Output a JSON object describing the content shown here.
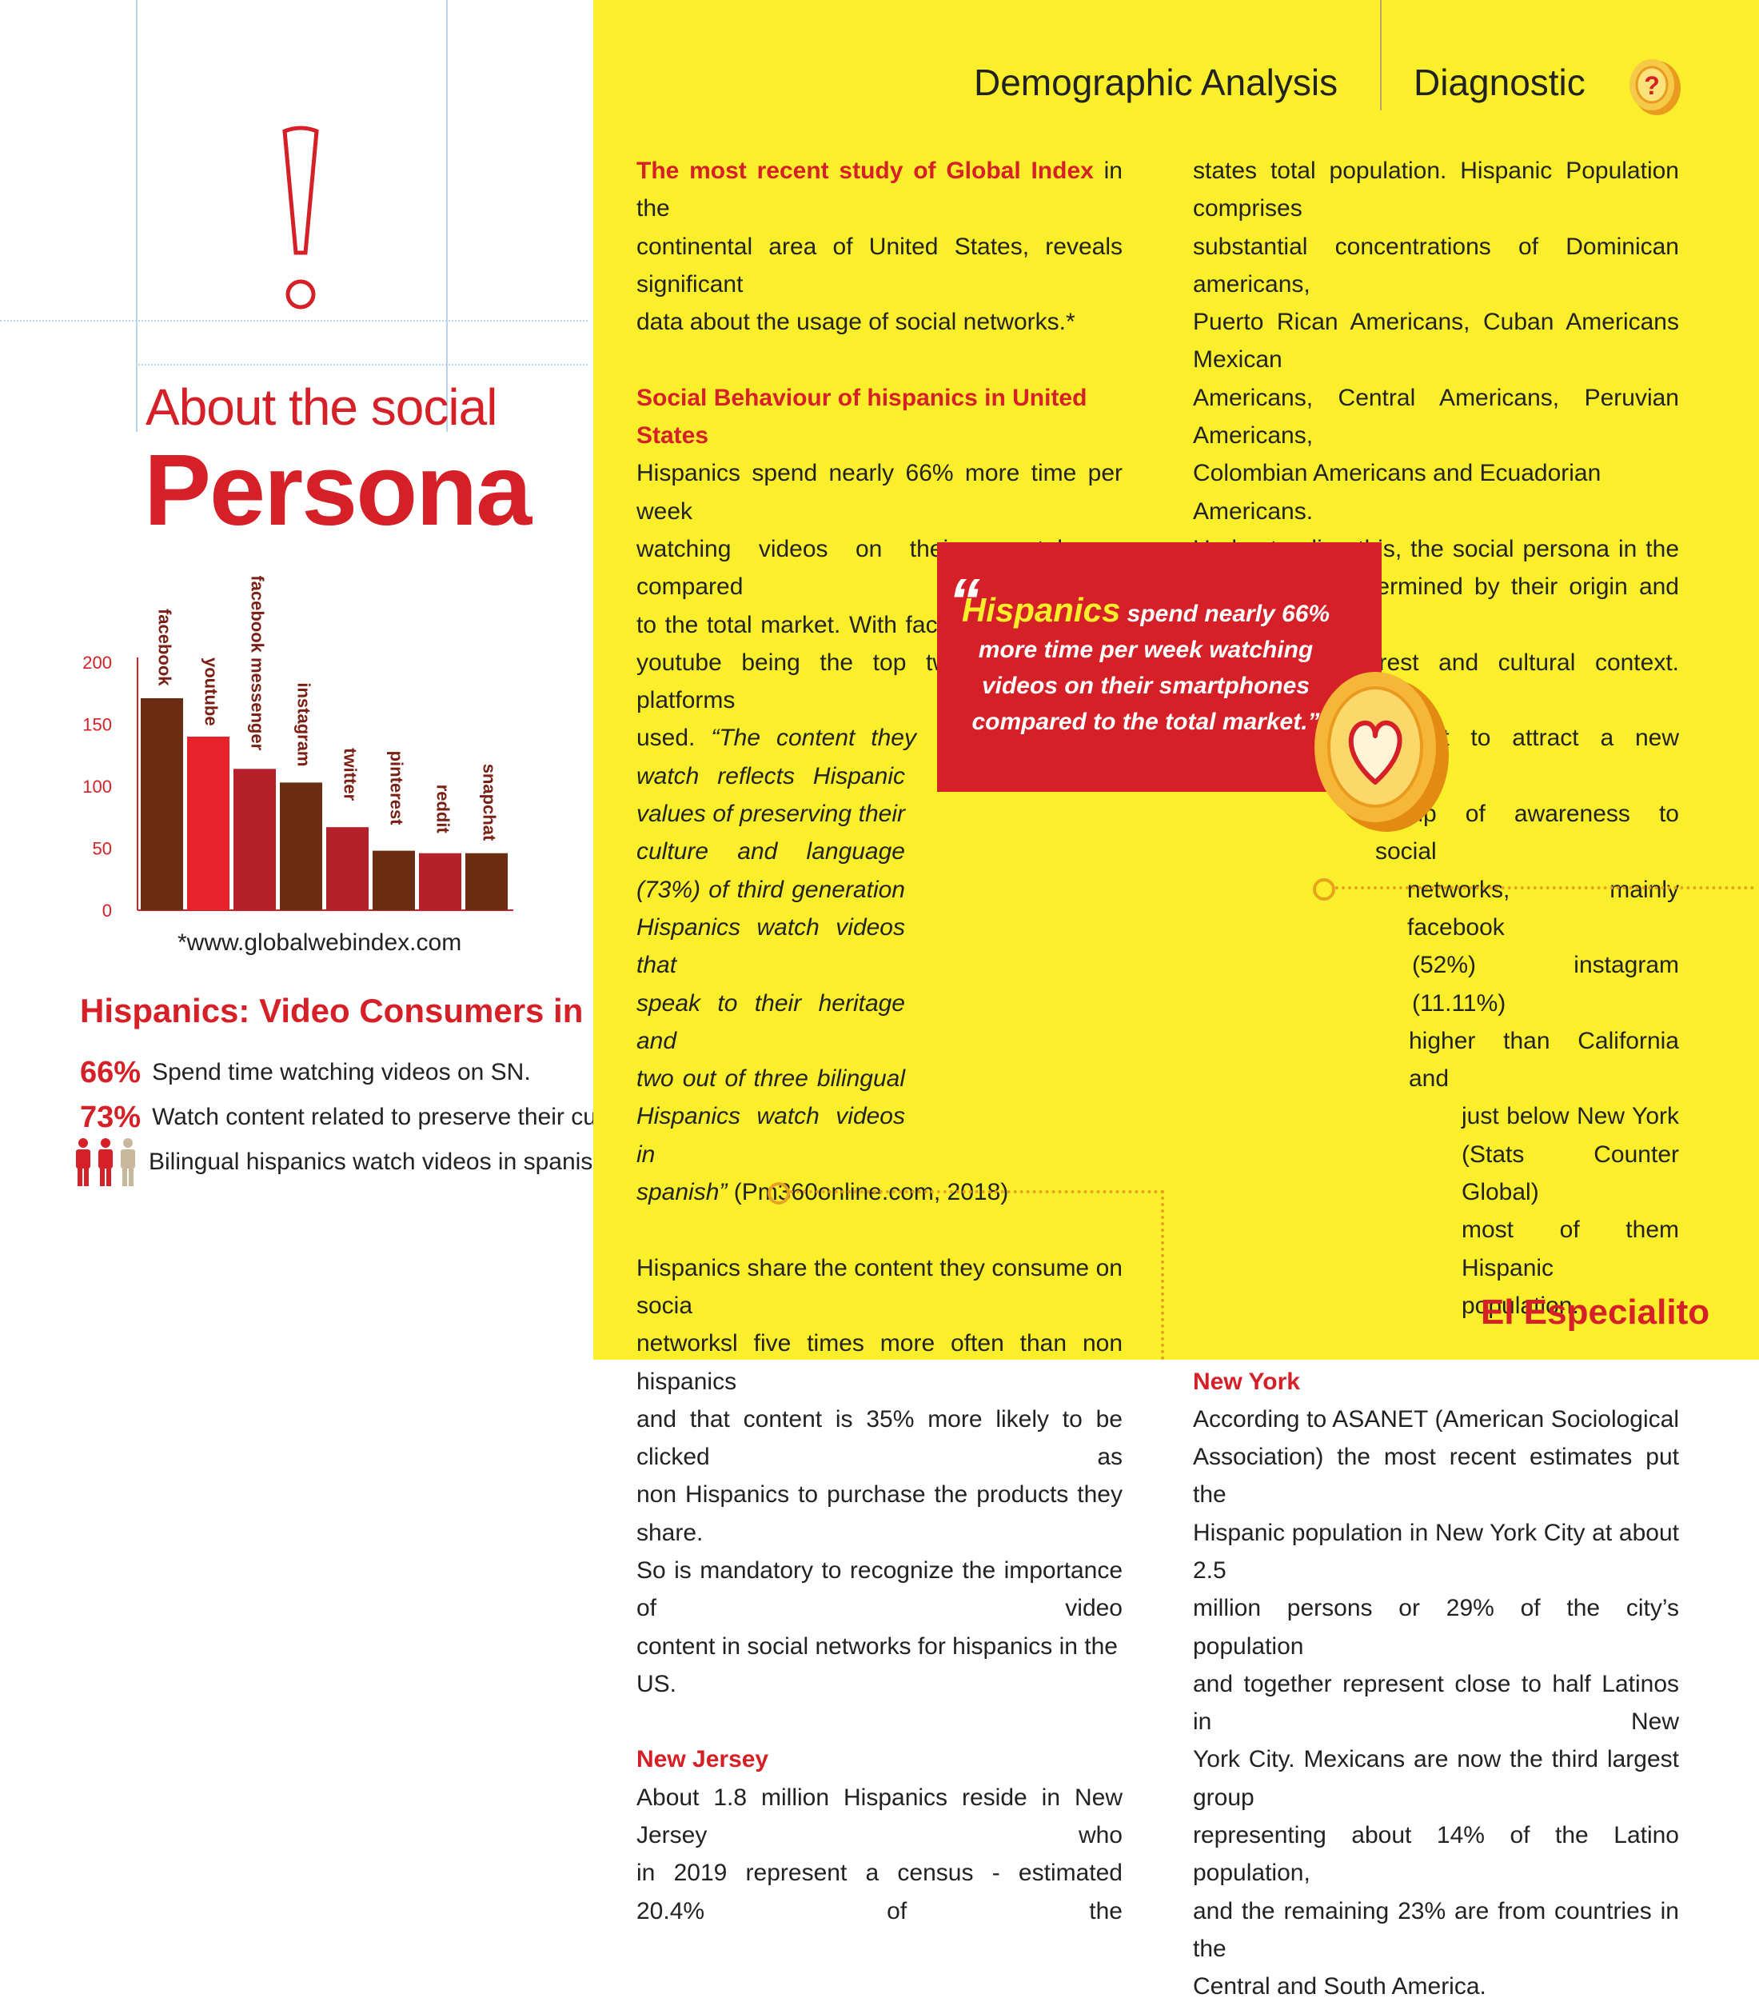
{
  "header": {
    "section": "Demographic Analysis",
    "subsection": "Diagnostic"
  },
  "left": {
    "title_line1": "About the social",
    "title_line2": "Persona",
    "chart_source": "*www.globalwebindex.com",
    "video_title": "Hispanics: Video Consumers in SN.",
    "stats": [
      {
        "value": "66%",
        "label": "Spend time watching videos on SN."
      },
      {
        "value": "73%",
        "label": "Watch content related to preserve their culture"
      },
      {
        "value": "",
        "label": "Bilingual hispanics watch videos in spanish"
      }
    ]
  },
  "chart_data": {
    "type": "bar",
    "categories": [
      "facebook",
      "youtube",
      "facebook messenger",
      "instagram",
      "twitter",
      "pinterest",
      "reddit",
      "snapchat"
    ],
    "values": [
      171,
      140,
      114,
      103,
      67,
      48,
      46,
      46
    ],
    "yticks": [
      0,
      50,
      100,
      150,
      200
    ],
    "ylim": [
      0,
      200
    ],
    "colors": [
      "#6b2d12",
      "#e8222b",
      "#b5202a",
      "#6b2d12",
      "#b5202a",
      "#6b2d12",
      "#b5202a",
      "#6b2d12"
    ],
    "title": "",
    "xlabel": "",
    "ylabel": ""
  },
  "col1": {
    "p1_highlight": "The most recent study of Global Index",
    "p1_l1_rest": "in the",
    "p1_l2": "continental area of United States, reveals significant",
    "p1_l3": "data about the usage of social networks.*",
    "sub1": "Social Behaviour of hispanics in United States",
    "p2_l1": "Hispanics spend nearly 66% more time per week",
    "p2_l2": "watching videos on their smartphones compared",
    "p2_l3": "to the total market. With facebook watch and",
    "p2_l4": "youtube being the top two digital video platforms",
    "p2_l5_a": "used.",
    "p2_l5_b": "“The content they",
    "q1": "watch reflects Hispanic",
    "q2": "values of preserving their",
    "q3": "culture and language",
    "q4": "(73%) of third generation",
    "q5": "Hispanics watch videos that",
    "q6": "speak to their heritage and",
    "q7": "two out of three bilingual",
    "q8": "Hispanics watch videos in",
    "q9_a": "spanish”",
    "q9_b": "(Pm360online.com, 2018)",
    "p3_l1": "Hispanics share the content they consume on socia",
    "p3_l2": "networksl five times more often than non hispanics",
    "p3_l3": "and that content is 35% more likely to be clicked as",
    "p3_l4": "non Hispanics to purchase the products they share.",
    "p3_l5": "So is mandatory to recognize the importance of video",
    "p3_l6": "content in social networks for hispanics in the US.",
    "sub2": "New Jersey",
    "p4_l1": "About 1.8 million Hispanics reside in New Jersey who",
    "p4_l2": "in 2019 represent a census - estimated 20.4% of the"
  },
  "col2": {
    "l1": "states total population. Hispanic Population comprises",
    "l2": "substantial concentrations of Dominican americans,",
    "l3": "Puerto Rican Americans, Cuban Americans Mexican",
    "l4": "Americans, Central Americans, Peruvian Americans,",
    "l5": "Colombian Americans and Ecuadorian Americans.",
    "l6": "Understanding this, the social persona in the",
    "l7": "Area can be determined by their origin and also",
    "l8": "their social interest and cultural context. However",
    "l9": "the Age is important to attract a new emerging",
    "l10": "group of awareness to social",
    "l11": "networks, mainly facebook",
    "l12": "(52%) instagram (11.11%)",
    "l13": "higher than California and",
    "l14": "just below New York",
    "l15": "(Stats Counter Global)",
    "l16": "most of them Hispanic",
    "l17": "population.",
    "sub3": "New York",
    "n1": "According to ASANET (American Sociological",
    "n2": "Association) the most recent estimates put the",
    "n3": "Hispanic population in New York City at about 2.5",
    "n4": "million persons or 29% of the city’s population",
    "n5": "and together represent close to half Latinos in New",
    "n6": "York City. Mexicans are now the third largest group",
    "n7": "representing about 14% of the Latino population,",
    "n8": "and the remaining 23% are from countries in the",
    "n9": "Central and South America."
  },
  "quote": {
    "highlight": "Hispanics",
    "l1_rest": "spend nearly 66%",
    "l2": "more time per week watching",
    "l3": "videos on their smartphones",
    "l4": "compared to the total market."
  },
  "brand": "El Especialito",
  "icons": [
    "exclamation-icon",
    "question-coin-icon",
    "heart-coin-icon",
    "people-icon"
  ]
}
